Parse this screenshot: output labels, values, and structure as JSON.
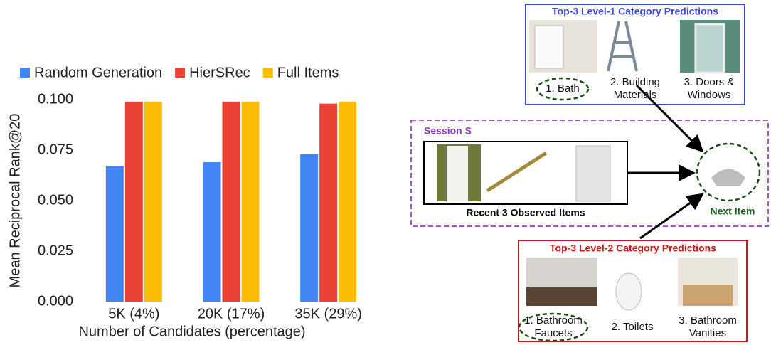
{
  "chart_data": {
    "type": "bar",
    "categories": [
      "5K (4%)",
      "20K (17%)",
      "35K (29%)"
    ],
    "series": [
      {
        "name": "Random Generation",
        "color": "#4285f4",
        "values": [
          0.067,
          0.069,
          0.073
        ]
      },
      {
        "name": "HierSRec",
        "color": "#ea4335",
        "values": [
          0.099,
          0.099,
          0.098
        ]
      },
      {
        "name": "Full Items",
        "color": "#fbbc04",
        "values": [
          0.099,
          0.099,
          0.099
        ]
      }
    ],
    "ylim": [
      0,
      0.1
    ],
    "yticks": [
      {
        "value": 0,
        "label": "0.000"
      },
      {
        "value": 0.025,
        "label": "0.025"
      },
      {
        "value": 0.05,
        "label": "0.050"
      },
      {
        "value": 0.075,
        "label": "0.075"
      },
      {
        "value": 0.1,
        "label": "0.100"
      }
    ],
    "y_label": "Mean Reciprocal Rank@20",
    "x_label": "Number of Candidates (percentage)",
    "grid": false,
    "legend": "top"
  },
  "diagram": {
    "level1": {
      "title": "Top-3 Level-1 Category Predictions",
      "items": [
        [
          "1. Bath"
        ],
        [
          "2. Building",
          "Materials"
        ],
        [
          "3. Doors &",
          "Windows"
        ]
      ]
    },
    "session": {
      "title": "Session S",
      "caption": "Recent 3 Observed Items"
    },
    "next_item": "Next Item",
    "level2": {
      "title": "Top-3 Level-2 Category Predictions",
      "items": [
        [
          "1. Bathroom",
          "Faucets"
        ],
        [
          "2. Toilets"
        ],
        [
          "3. Bathroom",
          "Vanities"
        ]
      ]
    }
  }
}
